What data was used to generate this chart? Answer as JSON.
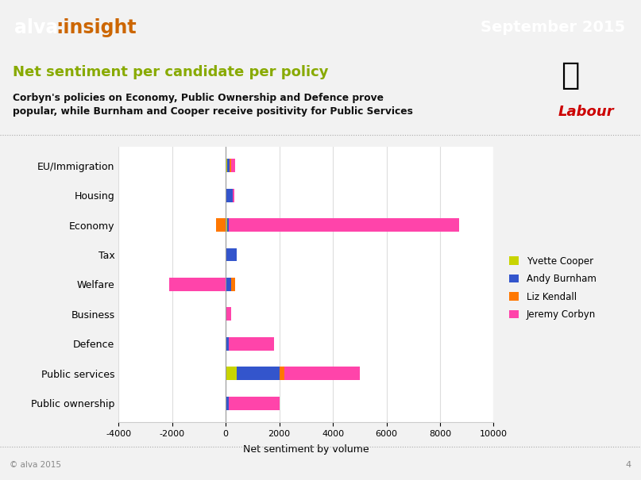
{
  "categories": [
    "EU/Immigration",
    "Housing",
    "Economy",
    "Tax",
    "Welfare",
    "Business",
    "Defence",
    "Public services",
    "Public ownership"
  ],
  "candidates": [
    "Yvette Cooper",
    "Andy Burnham",
    "Liz Kendall",
    "Jeremy Corbyn"
  ],
  "colors": [
    "#c8d400",
    "#3355cc",
    "#ff7700",
    "#ff44aa"
  ],
  "values": {
    "EU/Immigration": [
      50,
      100,
      50,
      150
    ],
    "Housing": [
      0,
      250,
      0,
      80
    ],
    "Economy": [
      50,
      50,
      -350,
      8600
    ],
    "Tax": [
      0,
      420,
      0,
      0
    ],
    "Welfare": [
      0,
      200,
      150,
      -2100
    ],
    "Business": [
      0,
      0,
      0,
      200
    ],
    "Defence": [
      0,
      100,
      0,
      1700
    ],
    "Public services": [
      400,
      1600,
      200,
      2800
    ],
    "Public ownership": [
      0,
      100,
      0,
      1900
    ]
  },
  "xlabel": "Net sentiment by volume",
  "xlim": [
    -4000,
    10000
  ],
  "xticks": [
    -4000,
    -2000,
    0,
    2000,
    4000,
    6000,
    8000,
    10000
  ],
  "header_bg": "#111111",
  "alva_color": "#ffffff",
  "insight_color": "#cc6600",
  "header_date": "September 2015",
  "title_text": "Net sentiment per candidate per policy",
  "subtitle_text": "Corbyn's policies on Economy, Public Ownership and Defence prove\npopular, while Burnham and Cooper receive positivity for Public Services",
  "title_color": "#88aa00",
  "subtitle_color": "#111111",
  "footer_text": "© alva 2015",
  "page_number": "4",
  "bar_height": 0.45,
  "chart_bg": "#ffffff",
  "outer_bg": "#f2f2f2"
}
